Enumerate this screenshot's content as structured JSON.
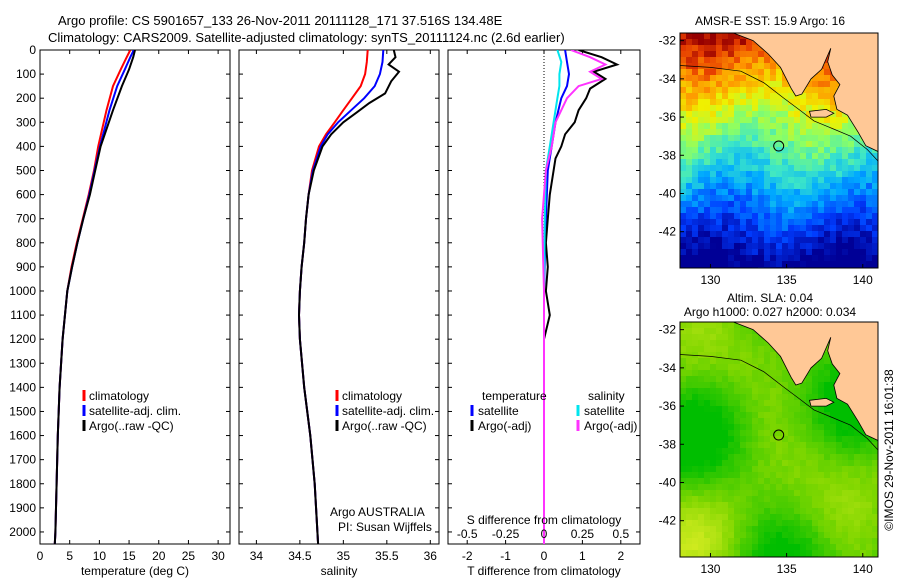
{
  "title_line1": "Argo profile: CS 5901657_133 26-Nov-2011 20111128_171 37.516S 134.48E",
  "title_line2": "Climatology: CARS2009. Satellite-adjusted climatology: synTS_20111124.nc (2.6d earlier)",
  "map1_title": "AMSR-E SST: 15.9 Argo: 16",
  "map2_title_line1": "Altim. SLA: 0.04",
  "map2_title_line2": "Argo h1000: 0.027 h2000: 0.034",
  "credit": "©IMOS 29-Nov-2011 16:01:38",
  "argo_note_line1": "Argo AUSTRALIA",
  "argo_note_line2": "PI: Susan Wijffels",
  "diff_top_label": "S difference from climatology",
  "colors": {
    "clim": "#ff0000",
    "sat": "#0000ff",
    "argo": "#000000",
    "sal_sat": "#00e5ee",
    "sal_argo": "#ff33ff",
    "land": "#ffc896",
    "sea_warm": "#b40000"
  },
  "chart_data": [
    {
      "type": "line",
      "panel": "temperature",
      "xlabel": "temperature (deg C)",
      "ylabel": "",
      "xlim": [
        0,
        32
      ],
      "ylim": [
        2050,
        0
      ],
      "x_ticks": [
        0,
        5,
        10,
        15,
        20,
        25,
        30
      ],
      "y_ticks": [
        0,
        100,
        200,
        300,
        400,
        500,
        600,
        700,
        800,
        900,
        1000,
        1100,
        1200,
        1300,
        1400,
        1500,
        1600,
        1700,
        1800,
        1900,
        2000
      ],
      "legend": [
        "climatology",
        "satellite-adj. clim.",
        "Argo(..raw -QC)"
      ],
      "series": [
        {
          "name": "climatology",
          "depth": [
            0,
            30,
            80,
            150,
            250,
            400,
            500,
            600,
            700,
            800,
            900,
            1000,
            1200,
            1400,
            1600,
            1800,
            2000,
            2050
          ],
          "values": [
            15.2,
            14.6,
            13.6,
            12.3,
            11.2,
            9.8,
            9.1,
            8.2,
            7.2,
            6.2,
            5.3,
            4.6,
            3.8,
            3.3,
            3.0,
            2.8,
            2.6,
            2.5
          ]
        },
        {
          "name": "satellite-adj. clim.",
          "depth": [
            0,
            30,
            80,
            150,
            250,
            400,
            500,
            600,
            700,
            800,
            900,
            1000,
            1200,
            1400,
            1600,
            1800,
            2000,
            2050
          ],
          "values": [
            15.8,
            15.2,
            14.3,
            13.0,
            11.7,
            10.1,
            9.2,
            8.3,
            7.3,
            6.3,
            5.4,
            4.6,
            3.8,
            3.3,
            3.0,
            2.8,
            2.6,
            2.5
          ]
        },
        {
          "name": "Argo(..raw -QC)",
          "depth": [
            0,
            30,
            80,
            150,
            250,
            400,
            500,
            600,
            700,
            800,
            900,
            1000,
            1200,
            1400,
            1600,
            1800,
            2000,
            2050
          ],
          "values": [
            16.0,
            15.7,
            15.0,
            13.8,
            12.3,
            10.2,
            9.3,
            8.4,
            7.3,
            6.3,
            5.4,
            4.6,
            3.8,
            3.3,
            3.0,
            2.8,
            2.6,
            2.5
          ]
        }
      ]
    },
    {
      "type": "line",
      "panel": "salinity",
      "xlabel": "salinity",
      "ylabel": "",
      "xlim": [
        33.8,
        36.1
      ],
      "ylim": [
        2050,
        0
      ],
      "x_ticks": [
        34,
        34.5,
        35,
        35.5,
        36
      ],
      "legend": [
        "climatology",
        "satellite-adj. clim.",
        "Argo(..raw -QC)"
      ],
      "series": [
        {
          "name": "climatology",
          "depth": [
            0,
            50,
            100,
            150,
            200,
            250,
            300,
            350,
            400,
            500,
            600,
            700,
            800,
            900,
            1000,
            1100,
            1200,
            1400,
            1600,
            1800,
            2050
          ],
          "values": [
            35.28,
            35.27,
            35.25,
            35.2,
            35.1,
            35.0,
            34.9,
            34.8,
            34.72,
            34.64,
            34.6,
            34.57,
            34.55,
            34.52,
            34.5,
            34.49,
            34.5,
            34.55,
            34.62,
            34.67,
            34.71
          ]
        },
        {
          "name": "satellite-adj. clim.",
          "depth": [
            0,
            50,
            100,
            150,
            200,
            250,
            300,
            350,
            400,
            500,
            600,
            700,
            800,
            900,
            1000,
            1100,
            1200,
            1400,
            1600,
            1800,
            2050
          ],
          "values": [
            35.46,
            35.45,
            35.42,
            35.36,
            35.24,
            35.09,
            34.94,
            34.82,
            34.74,
            34.65,
            34.6,
            34.57,
            34.55,
            34.52,
            34.5,
            34.49,
            34.5,
            34.55,
            34.62,
            34.67,
            34.71
          ]
        },
        {
          "name": "Argo(..raw -QC)",
          "depth": [
            0,
            30,
            60,
            90,
            130,
            180,
            220,
            260,
            300,
            350,
            400,
            500,
            600,
            700,
            800,
            900,
            1000,
            1100,
            1200,
            1400,
            1600,
            1800,
            2050
          ],
          "values": [
            35.58,
            35.6,
            35.52,
            35.64,
            35.55,
            35.48,
            35.3,
            35.15,
            35.0,
            34.86,
            34.76,
            34.66,
            34.6,
            34.57,
            34.55,
            34.52,
            34.5,
            34.49,
            34.5,
            34.55,
            34.62,
            34.67,
            34.71
          ]
        }
      ]
    },
    {
      "type": "line",
      "panel": "difference",
      "xlabel": "T difference from climatology",
      "top_xlabel": "S difference from climatology",
      "xlim": [
        -2.5,
        2.5
      ],
      "top_xlim": [
        -0.625,
        0.625
      ],
      "ylim": [
        2050,
        0
      ],
      "x_ticks": [
        -2,
        -1,
        0,
        1,
        2
      ],
      "top_x_ticks": [
        "-0.5",
        "-0.25",
        "0",
        "0.25",
        "0.5"
      ],
      "legend": [
        "temperature",
        "satellite",
        "Argo(-adj)",
        "salinity",
        "satellite",
        "Argo(-adj)"
      ],
      "series": [
        {
          "name": "T satellite",
          "depth": [
            0,
            50,
            100,
            150,
            200,
            300,
            400,
            500,
            700,
            1000,
            2050
          ],
          "values": [
            0.55,
            0.6,
            0.65,
            0.6,
            0.45,
            0.3,
            0.2,
            0.1,
            0.05,
            0.0,
            0.0
          ]
        },
        {
          "name": "T Argo(-adj)",
          "depth": [
            0,
            30,
            60,
            90,
            120,
            160,
            200,
            250,
            300,
            350,
            400,
            450,
            500,
            600,
            700,
            800,
            900,
            1000,
            1100,
            1200,
            1400,
            2050
          ],
          "values": [
            0.9,
            1.5,
            1.9,
            1.3,
            1.6,
            1.2,
            1.1,
            0.9,
            0.8,
            0.55,
            0.45,
            0.3,
            0.25,
            0.15,
            0.1,
            0.05,
            0.1,
            0.05,
            0.15,
            0.0,
            0.0,
            0.0
          ]
        },
        {
          "name": "S satellite",
          "depth": [
            0,
            50,
            100,
            150,
            200,
            300,
            400,
            500,
            700,
            1000,
            2050
          ],
          "values": [
            0.35,
            0.45,
            0.4,
            0.4,
            0.35,
            0.25,
            0.15,
            0.05,
            0.02,
            0.0,
            0.0
          ]
        },
        {
          "name": "S Argo(-adj)",
          "depth": [
            0,
            30,
            60,
            90,
            120,
            150,
            200,
            250,
            300,
            400,
            500,
            600,
            700,
            1000,
            2050
          ],
          "values": [
            0.7,
            1.2,
            1.6,
            1.2,
            1.5,
            0.9,
            0.6,
            0.45,
            0.3,
            0.2,
            0.05,
            0.0,
            -0.05,
            0.0,
            0.0
          ]
        }
      ]
    },
    {
      "type": "heatmap",
      "panel": "map-sst",
      "title": "AMSR-E SST: 15.9 Argo: 16",
      "x_ticks": [
        130,
        135,
        140
      ],
      "y_ticks": [
        -32,
        -34,
        -36,
        -38,
        -40,
        -42
      ],
      "xlim": [
        128,
        141
      ],
      "ylim": [
        -43.9,
        -31.6
      ],
      "argo_position": [
        134.48,
        -37.516
      ]
    },
    {
      "type": "heatmap",
      "panel": "map-sla",
      "title": "Altim. SLA: 0.04",
      "x_ticks": [
        130,
        135,
        140
      ],
      "y_ticks": [
        -32,
        -34,
        -36,
        -38,
        -40,
        -42
      ],
      "xlim": [
        128,
        141
      ],
      "ylim": [
        -43.9,
        -31.6
      ],
      "argo_position": [
        134.48,
        -37.516
      ]
    }
  ]
}
